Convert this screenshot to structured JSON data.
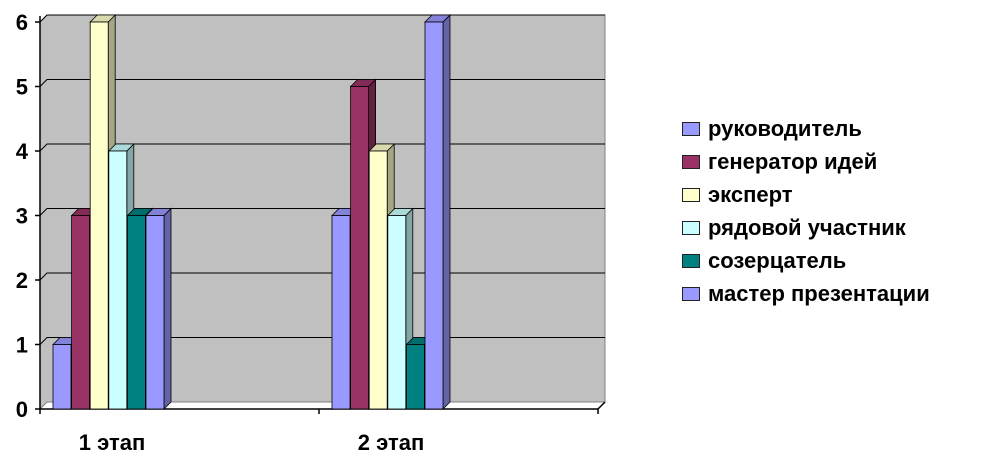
{
  "chart_data": {
    "type": "bar",
    "categories": [
      "1 этап",
      "2 этап"
    ],
    "series": [
      {
        "name": "руководитель",
        "values": [
          1,
          3
        ],
        "color": "#9999ff"
      },
      {
        "name": "генератор идей",
        "values": [
          3,
          5
        ],
        "color": "#993366"
      },
      {
        "name": "эксперт",
        "values": [
          6,
          4
        ],
        "color": "#ffffcc"
      },
      {
        "name": "рядовой участник",
        "values": [
          4,
          3
        ],
        "color": "#ccffff"
      },
      {
        "name": "созерцатель",
        "values": [
          3,
          1
        ],
        "color": "#008080"
      },
      {
        "name": "мастер презентации",
        "values": [
          3,
          6
        ],
        "color": "#9999ff"
      }
    ],
    "ylim": [
      0,
      6
    ],
    "yticks": [
      "0",
      "1",
      "2",
      "3",
      "4",
      "5",
      "6"
    ],
    "title": "",
    "xlabel": "",
    "ylabel": "",
    "grid": true,
    "legend_position": "right",
    "style": "3d-clustered-column",
    "plot_background": "#c0c0c0"
  }
}
